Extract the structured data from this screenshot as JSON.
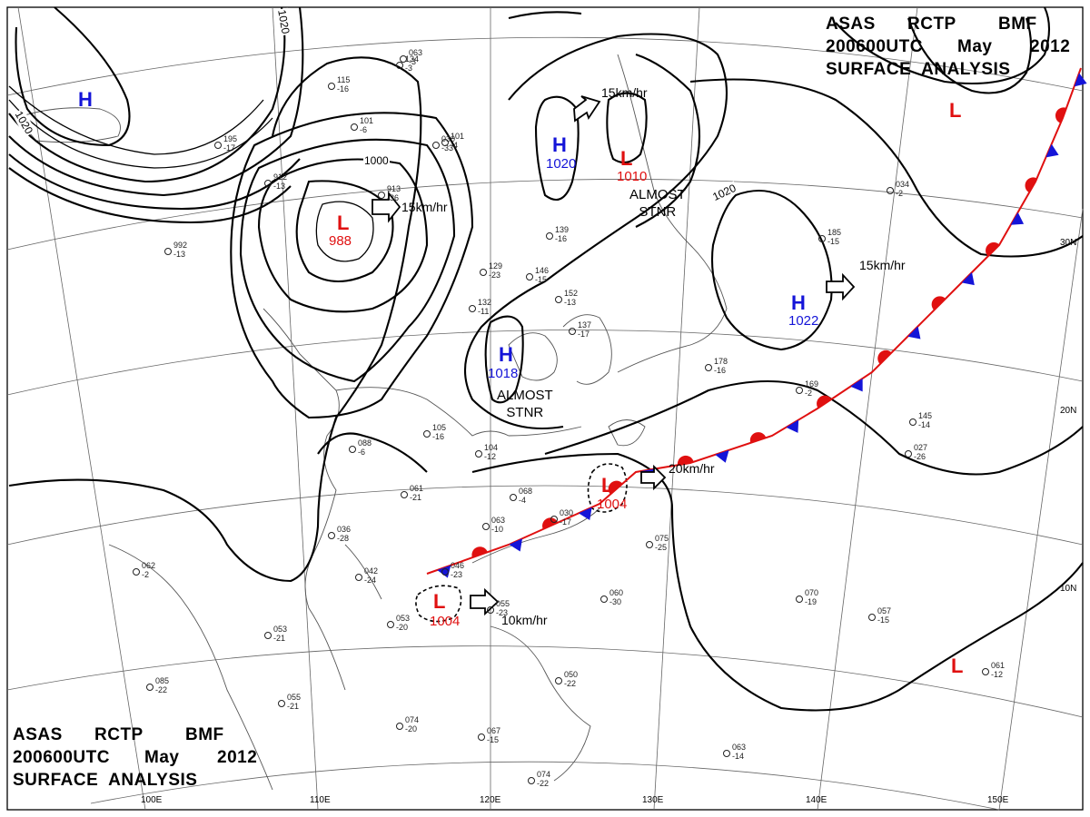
{
  "header": {
    "line1": [
      "ASAS",
      "RCTP",
      "BMF"
    ],
    "line2": [
      "200600UTC",
      "May",
      "2012"
    ],
    "line3": "SURFACE  ANALYSIS"
  },
  "footer": {
    "line1": [
      "ASAS",
      "RCTP",
      "BMF"
    ],
    "line2": [
      "200600UTC",
      "May",
      "2012"
    ],
    "line3": "SURFACE  ANALYSIS"
  },
  "colors": {
    "high": "#1414d8",
    "low": "#e01010",
    "isobar": "#000000",
    "cold_front": "#1414d8",
    "warm_front": "#e01010"
  },
  "systems": [
    {
      "id": "h-nw",
      "type": "H",
      "pressure": ""
    },
    {
      "id": "l-mongolia",
      "type": "L",
      "pressure": "988"
    },
    {
      "id": "h-center",
      "type": "H",
      "pressure": "1020"
    },
    {
      "id": "l-north",
      "type": "L",
      "pressure": "1010"
    },
    {
      "id": "h-yellow-sea",
      "type": "H",
      "pressure": "1018"
    },
    {
      "id": "h-pacific",
      "type": "H",
      "pressure": "1022"
    },
    {
      "id": "l-ne",
      "type": "L",
      "pressure": ""
    },
    {
      "id": "l-taiwan",
      "type": "L",
      "pressure": "1004"
    },
    {
      "id": "l-scs",
      "type": "L",
      "pressure": "1004"
    },
    {
      "id": "l-se",
      "type": "L",
      "pressure": ""
    }
  ],
  "motions": {
    "m1": "15km/hr",
    "m2": "15km/hr",
    "m3": "15km/hr",
    "m4": "20km/hr",
    "m5": "10km/hr"
  },
  "notes": {
    "stnr1_a": "ALMOST",
    "stnr1_b": "STNR",
    "stnr2_a": "ALMOST",
    "stnr2_b": "STNR"
  },
  "isobar_labels": {
    "a": "1020",
    "b": "1020",
    "c": "1000",
    "d": "1020"
  },
  "geo_labels": {
    "lon": [
      "100E",
      "110E",
      "120E",
      "130E",
      "140E",
      "150E"
    ],
    "lat": [
      "30N",
      "20N",
      "10N"
    ]
  },
  "stations": [
    "139\n-16",
    "129\n-23",
    "146\n-15",
    "132\n-11",
    "152\n-13",
    "137\n-17",
    "105\n-16",
    "104\n-12",
    "088\n-6",
    "061\n-21",
    "068\n-4",
    "030\n-17",
    "063\n-10",
    "055\n-23",
    "036\n-28",
    "042\n-24",
    "046\n-23",
    "075\n-25",
    "060\n-30",
    "053\n-20",
    "053\n-21",
    "055\n-21",
    "070\n-19",
    "057\n-15",
    "061\n-12",
    "074\n-20",
    "067\n-15",
    "063\n-14",
    "074\n-22",
    "050\n-22",
    "185\n-15",
    "178\n-16",
    "169\n-2",
    "145\n-14",
    "027\n-26",
    "034\n-2",
    "912\n-13",
    "913\n-36",
    "992\n-13",
    "101\n-6",
    "195\n-17",
    "115\n-16",
    "134\n-3",
    "101\n-4",
    "063\n-3",
    "030\n-33",
    "062\n-2",
    "085\n-22"
  ]
}
